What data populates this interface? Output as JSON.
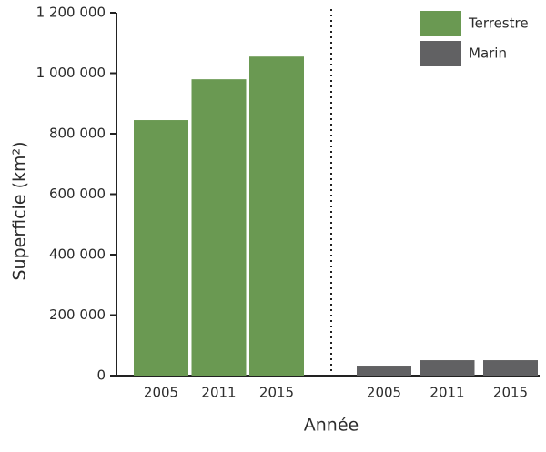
{
  "chart_data": {
    "type": "bar",
    "categories": [
      "2005",
      "2011",
      "2015",
      "2005",
      "2011",
      "2015"
    ],
    "series": [
      {
        "name": "Terrestre",
        "color": "#6a9952",
        "values": [
          845000,
          980000,
          1055000,
          null,
          null,
          null
        ]
      },
      {
        "name": "Marin",
        "color": "#616163",
        "values": [
          null,
          null,
          null,
          33000,
          51000,
          51000
        ]
      }
    ],
    "ylabel": "Superficie (km²)",
    "xlabel": "Année",
    "ylim": [
      0,
      1200000
    ],
    "yticks": [
      0,
      {
        "value": 200000,
        "label": "200 000"
      },
      {
        "value": 400000,
        "label": "400 000"
      },
      {
        "value": 600000,
        "label": "600 000"
      },
      {
        "value": 800000,
        "label": "800 000"
      },
      {
        "value": 1000000,
        "label": "1 000 000"
      },
      {
        "value": 1200000,
        "label": "1 200 000"
      }
    ],
    "grid": false,
    "legend": "top-right"
  }
}
